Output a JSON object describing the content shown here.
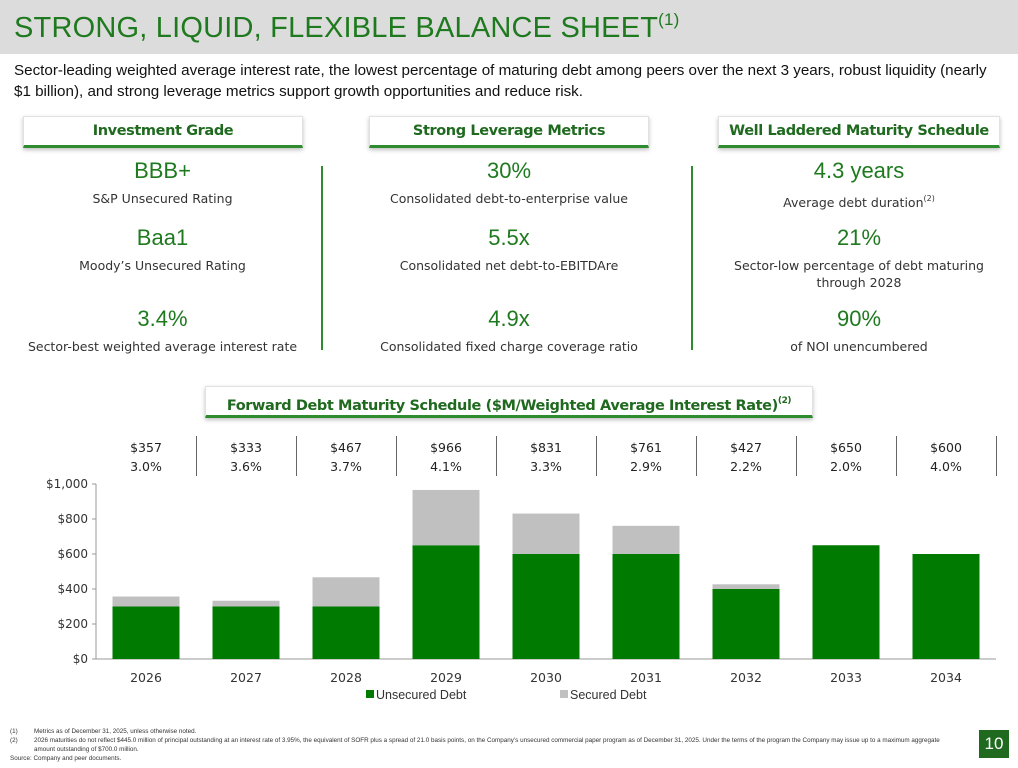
{
  "title": {
    "text": "STRONG, LIQUID, FLEXIBLE BALANCE SHEET",
    "superscript": "(1)"
  },
  "subtitle": "Sector-leading weighted average interest rate, the lowest percentage of maturing debt among peers over the next 3 years, robust liquidity (nearly $1 billion), and strong leverage metrics support growth opportunities and reduce risk.",
  "columns": [
    {
      "header": "Investment Grade",
      "metrics": [
        {
          "value": "BBB+",
          "label": "S&P Unsecured Rating"
        },
        {
          "value": "Baa1",
          "label": "Moody’s Unsecured Rating"
        },
        {
          "value": "3.4%",
          "label": "Sector-best weighted average interest rate"
        }
      ]
    },
    {
      "header": "Strong Leverage Metrics",
      "metrics": [
        {
          "value": "30%",
          "label": "Consolidated debt-to-enterprise value"
        },
        {
          "value": "5.5x",
          "label": "Consolidated net debt-to-EBITDAre"
        },
        {
          "value": "4.9x",
          "label": "Consolidated fixed charge coverage ratio"
        }
      ]
    },
    {
      "header": "Well Laddered Maturity Schedule",
      "metrics": [
        {
          "value": "4.3 years",
          "label": "Average debt duration",
          "label_sup": "(2)"
        },
        {
          "value": "21%",
          "label": "Sector-low percentage of debt maturing through 2028"
        },
        {
          "value": "90%",
          "label": "of NOI unencumbered"
        }
      ]
    }
  ],
  "chart_header": {
    "text": "Forward Debt Maturity Schedule ($M/Weighted Average Interest Rate)",
    "superscript": "(2)"
  },
  "chart_data": {
    "type": "bar",
    "stacked": true,
    "categories": [
      "2026",
      "2027",
      "2028",
      "2029",
      "2030",
      "2031",
      "2032",
      "2033",
      "2034"
    ],
    "series": [
      {
        "name": "Unsecured Debt",
        "color": "#007a00",
        "values": [
          300,
          300,
          300,
          650,
          600,
          600,
          400,
          650,
          600
        ]
      },
      {
        "name": "Secured Debt",
        "color": "#c0c0c0",
        "values": [
          57,
          33,
          167,
          316,
          231,
          161,
          27,
          0,
          0
        ]
      }
    ],
    "totals_labels": [
      "$357",
      "$333",
      "$467",
      "$966",
      "$831",
      "$761",
      "$427",
      "$650",
      "$600"
    ],
    "rate_labels": [
      "3.0%",
      "3.6%",
      "3.7%",
      "4.1%",
      "3.3%",
      "2.9%",
      "2.2%",
      "2.0%",
      "4.0%"
    ],
    "ylim": [
      0,
      1000
    ],
    "yticks": [
      0,
      200,
      400,
      600,
      800,
      1000
    ],
    "ytick_labels": [
      "$0",
      "$200",
      "$400",
      "$600",
      "$800",
      "$1,000"
    ],
    "legend_position": "bottom"
  },
  "footnotes": [
    {
      "num": "(1)",
      "text": "Metrics as of December 31, 2025, unless otherwise noted."
    },
    {
      "num": "(2)",
      "text": "2026 maturities do not reflect $445.0 million of principal outstanding at an interest rate of 3.95%, the equivalent of SOFR plus a spread of 21.0 basis points, on the Company’s unsecured commercial paper program as of December 31, 2025. Under the terms of the program the Company may issue up to a maximum aggregate amount outstanding of $700.0 million."
    }
  ],
  "source": "Source: Company and peer documents.",
  "page_number": "10"
}
